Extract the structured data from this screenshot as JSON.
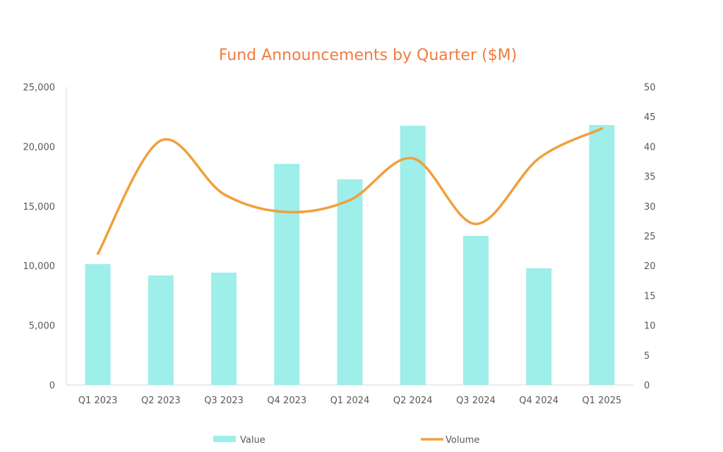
{
  "chart_data": {
    "type": "bar+line",
    "title": "Fund Announcements by Quarter ($M)",
    "categories": [
      "Q1 2023",
      "Q2 2023",
      "Q3 2023",
      "Q4 2023",
      "Q1 2024",
      "Q2 2024",
      "Q3 2024",
      "Q4 2024",
      "Q1 2025"
    ],
    "series": [
      {
        "name": "Value",
        "type": "bar",
        "axis": "left",
        "color": "#9eeee9",
        "values": [
          10130,
          9180,
          9420,
          18540,
          17240,
          21740,
          12500,
          9780,
          21800
        ]
      },
      {
        "name": "Volume",
        "type": "line",
        "axis": "right",
        "color": "#f0a03c",
        "smooth": true,
        "values": [
          22,
          41,
          32,
          29,
          31,
          38,
          27,
          38,
          43
        ]
      }
    ],
    "y_left": {
      "range": [
        0,
        25000
      ],
      "ticks": [
        "0",
        "5,000",
        "10,000",
        "15,000",
        "20,000",
        "25,000"
      ]
    },
    "y_right": {
      "range": [
        0,
        50
      ],
      "ticks": [
        "0",
        "5",
        "10",
        "15",
        "20",
        "25",
        "30",
        "35",
        "40",
        "45",
        "50"
      ]
    },
    "legend": {
      "position": "bottom",
      "entries": [
        "Value",
        "Volume"
      ]
    },
    "grid": false,
    "title_color": "#f07c3e"
  }
}
